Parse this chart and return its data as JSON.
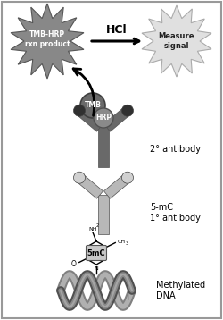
{
  "bg_color": "#ffffff",
  "star_left_color": "#888888",
  "star_right_color": "#e0e0e0",
  "body_dark": "#696969",
  "body_mid": "#909090",
  "body_light": "#b8b8b8",
  "tip_dark": "#303030",
  "tip_light": "#d0d0d0",
  "text_tmb_hrp": "TMB-HRP\nrxn product",
  "text_hcl": "HCl",
  "text_measure": "Measure\nsignal",
  "text_2ab": "2° antibody",
  "text_1ab": "5-mC\n1° antibody",
  "text_dna": "Methylated\nDNA",
  "text_tmb": "TMB",
  "text_hrp": "HRP",
  "text_5mc": "5mC",
  "figsize": [
    2.5,
    3.58
  ],
  "dpi": 100
}
